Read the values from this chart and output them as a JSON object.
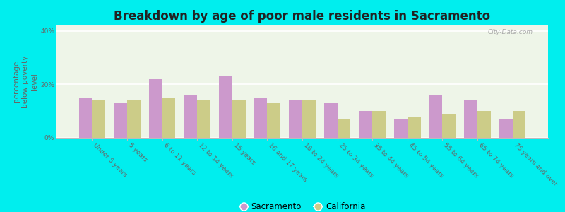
{
  "title": "Breakdown by age of poor male residents in Sacramento",
  "ylabel": "percentage\nbelow poverty\nlevel",
  "categories": [
    "Under 5 years",
    "5 years",
    "6 to 11 years",
    "12 to 14 years",
    "15 years",
    "16 and 17 years",
    "18 to 24 years",
    "25 to 34 years",
    "35 to 44 years",
    "45 to 54 years",
    "55 to 64 years",
    "65 to 74 years",
    "75 years and over"
  ],
  "sacramento": [
    15,
    13,
    22,
    16,
    23,
    15,
    14,
    13,
    10,
    7,
    16,
    14,
    7
  ],
  "california": [
    14,
    14,
    15,
    14,
    14,
    13,
    14,
    7,
    10,
    8,
    9,
    10,
    10
  ],
  "sacramento_color": "#cc99cc",
  "california_color": "#cccc88",
  "outer_bg": "#00eeee",
  "plot_bg": "#eef5e8",
  "bar_width": 0.38,
  "ylim": [
    0,
    42
  ],
  "yticks": [
    0,
    20,
    40
  ],
  "ytick_labels": [
    "0%",
    "20%",
    "40%"
  ],
  "title_fontsize": 12,
  "ylabel_fontsize": 7.5,
  "tick_fontsize": 6.5,
  "legend_fontsize": 8.5,
  "watermark": "City-Data.com"
}
